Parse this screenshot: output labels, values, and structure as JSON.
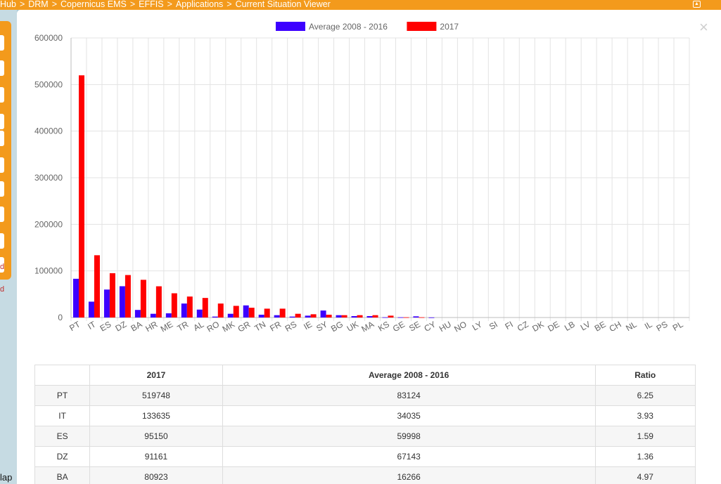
{
  "breadcrumb": {
    "items": [
      "Hub",
      "DRM",
      "Copernicus EMS",
      "EFFIS",
      "Applications",
      "Current Situation Viewer"
    ],
    "separator": ">"
  },
  "map": {
    "bottom_text": "lap",
    "side_label_1": "d",
    "side_label_2": "d"
  },
  "panel": {
    "close_glyph": "×"
  },
  "chart_data": {
    "type": "bar",
    "categories": [
      "PT",
      "IT",
      "ES",
      "DZ",
      "BA",
      "HR",
      "ME",
      "TR",
      "AL",
      "RO",
      "MK",
      "GR",
      "TN",
      "FR",
      "RS",
      "IE",
      "SY",
      "BG",
      "UK",
      "MA",
      "KS",
      "GE",
      "SE",
      "CY",
      "HU",
      "NO",
      "LY",
      "SI",
      "FI",
      "CZ",
      "DK",
      "DE",
      "LB",
      "LV",
      "BE",
      "CH",
      "NL",
      "IL",
      "PS",
      "PL"
    ],
    "series": [
      {
        "name": "Average 2008 - 2016",
        "color": "#3c00ff",
        "values": [
          83124,
          34035,
          59998,
          67143,
          16266,
          8000,
          9000,
          30000,
          17000,
          2000,
          8000,
          26000,
          6000,
          5000,
          2000,
          4000,
          15000,
          5000,
          3000,
          3000,
          500,
          500,
          2500,
          200,
          0,
          0,
          0,
          0,
          0,
          0,
          0,
          0,
          0,
          0,
          0,
          0,
          0,
          0,
          0,
          0
        ]
      },
      {
        "name": "2017",
        "color": "#ff0000",
        "values": [
          519748,
          133635,
          95150,
          91161,
          80923,
          67000,
          52000,
          45000,
          42000,
          30000,
          25000,
          21000,
          19000,
          19000,
          8000,
          7000,
          6000,
          5000,
          5000,
          5000,
          4000,
          500,
          500,
          0,
          0,
          0,
          0,
          0,
          0,
          0,
          0,
          0,
          0,
          0,
          0,
          0,
          0,
          0,
          0,
          0
        ]
      }
    ],
    "ylim": [
      0,
      600000
    ],
    "yticks": [
      0,
      100000,
      200000,
      300000,
      400000,
      500000,
      600000
    ],
    "grid": true,
    "legend_position": "top-center"
  },
  "table": {
    "columns": [
      "",
      "2017",
      "Average 2008 - 2016",
      "Ratio"
    ],
    "rows": [
      [
        "PT",
        "519748",
        "83124",
        "6.25"
      ],
      [
        "IT",
        "133635",
        "34035",
        "3.93"
      ],
      [
        "ES",
        "95150",
        "59998",
        "1.59"
      ],
      [
        "DZ",
        "91161",
        "67143",
        "1.36"
      ],
      [
        "BA",
        "80923",
        "16266",
        "4.97"
      ]
    ]
  }
}
